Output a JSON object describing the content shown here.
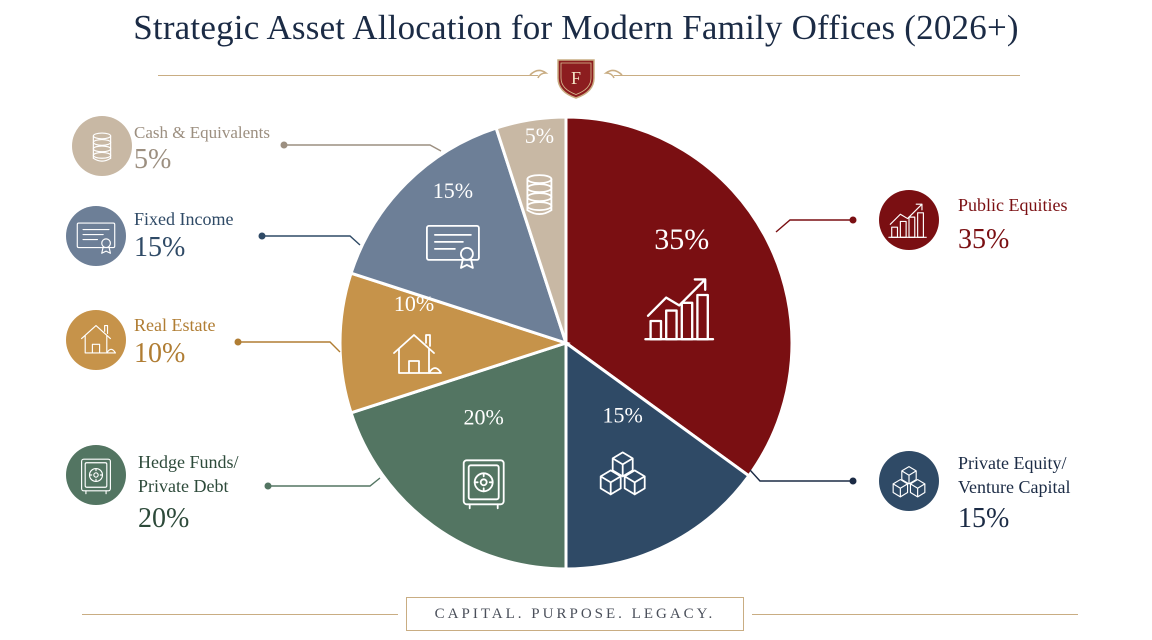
{
  "title": "Strategic Asset Allocation for Modern Family Offices (2026+)",
  "crest_letter": "F",
  "tagline": "CAPITAL.   PURPOSE.   LEGACY.",
  "colors": {
    "public_equities": "#7a0f12",
    "private_equity": "#2f4a66",
    "hedge_funds": "#537562",
    "real_estate": "#c6934a",
    "fixed_income": "#6d7f97",
    "cash": "#c8b8a4",
    "gold": "#c9ad83",
    "navy": "#1b2b45"
  },
  "chart_data": {
    "type": "pie",
    "title": "Strategic Asset Allocation for Modern Family Offices (2026+)",
    "slices": [
      {
        "label": "Public Equities",
        "value": 35,
        "pct": "35%",
        "icon": "growth-chart-icon",
        "color": "#7a0f12"
      },
      {
        "label": "Private Equity/ Venture Capital",
        "value": 15,
        "pct": "15%",
        "icon": "cubes-icon",
        "color": "#2f4a66"
      },
      {
        "label": "Hedge Funds/ Private Debt",
        "value": 20,
        "pct": "20%",
        "icon": "safe-icon",
        "color": "#537562"
      },
      {
        "label": "Real Estate",
        "value": 10,
        "pct": "10%",
        "icon": "house-icon",
        "color": "#c6934a"
      },
      {
        "label": "Fixed Income",
        "value": 15,
        "pct": "15%",
        "icon": "certificate-icon",
        "color": "#6d7f97"
      },
      {
        "label": "Cash & Equivalents",
        "value": 5,
        "pct": "5%",
        "icon": "coin-stack-icon",
        "color": "#c8b8a4"
      }
    ]
  },
  "legend": {
    "public_equities": {
      "line1": "Public Equities",
      "line2": "",
      "value": "35%"
    },
    "private_equity": {
      "line1": "Private Equity/",
      "line2": "Venture Capital",
      "value": "15%"
    },
    "hedge_funds": {
      "line1": "Hedge Funds/",
      "line2": "Private Debt",
      "value": "20%"
    },
    "real_estate": {
      "line1": "Real Estate",
      "line2": "",
      "value": "10%"
    },
    "fixed_income": {
      "line1": "Fixed Income",
      "line2": "",
      "value": "15%"
    },
    "cash": {
      "line1": "Cash & Equivalents",
      "line2": "",
      "value": "5%"
    }
  }
}
